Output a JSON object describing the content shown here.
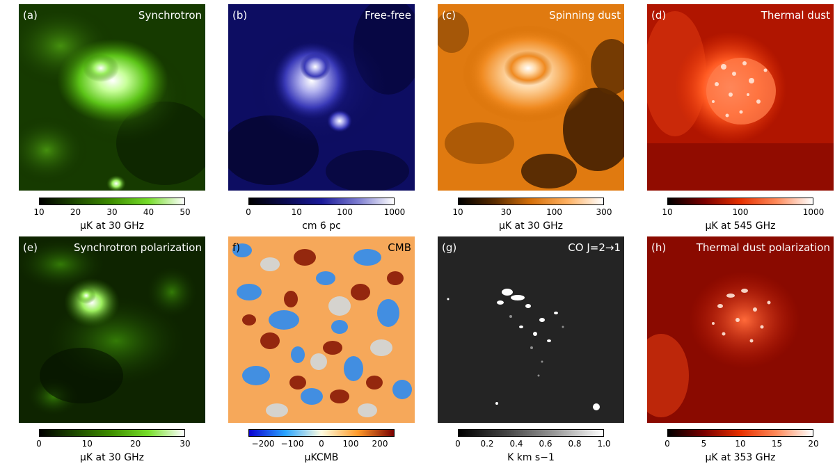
{
  "panels": [
    {
      "letter": "(a)",
      "title": "Synchrotron",
      "ticks": [
        "10",
        "20",
        "30",
        "40",
        "50"
      ],
      "unit": "μK at 30 GHz",
      "palette": [
        "#000000",
        "#1e4a00",
        "#3f8f00",
        "#76dd2a",
        "#ffffff"
      ]
    },
    {
      "letter": "(b)",
      "title": "Free-free",
      "ticks": [
        "0",
        "10",
        "100",
        "1000"
      ],
      "unit": "cm  6 pc",
      "palette": [
        "#000000",
        "#0a0a50",
        "#1a1a9a",
        "#7b7bd0",
        "#ffffff"
      ]
    },
    {
      "letter": "(c)",
      "title": "Spinning dust",
      "ticks": [
        "10",
        "30",
        "100",
        "300"
      ],
      "unit": "μK at 30 GHz",
      "palette": [
        "#000000",
        "#5a2c00",
        "#d6700a",
        "#ffb060",
        "#ffffff"
      ]
    },
    {
      "letter": "(d)",
      "title": "Thermal dust",
      "ticks": [
        "10",
        "100",
        "1000"
      ],
      "unit": "μK at 545 GHz",
      "palette": [
        "#000000",
        "#7a0000",
        "#e63000",
        "#ff8a5a",
        "#ffffff"
      ]
    },
    {
      "letter": "(e)",
      "title": "Synchrotron polarization",
      "ticks": [
        "0",
        "10",
        "20",
        "30"
      ],
      "unit": "μK at 30 GHz",
      "palette": [
        "#000000",
        "#1e4a00",
        "#3f8f00",
        "#76dd2a",
        "#ffffff"
      ]
    },
    {
      "letter": "f)",
      "title": "CMB",
      "ticks": [
        "−200",
        "−100",
        "0",
        "100",
        "200"
      ],
      "unit": "μKCMB",
      "palette": [
        "#0a00d0",
        "#29a3ff",
        "#fffde0",
        "#ff9a2a",
        "#7a0000"
      ]
    },
    {
      "letter": "(g)",
      "title": "CO J=2→1",
      "ticks": [
        "0",
        "0.2",
        "0.4",
        "0.6",
        "0.8",
        "1.0"
      ],
      "unit": "K km s−1",
      "palette": [
        "#000000",
        "#444444",
        "#999999",
        "#ffffff"
      ]
    },
    {
      "letter": "(h)",
      "title": "Thermal dust polarization",
      "ticks": [
        "0",
        "5",
        "10",
        "15",
        "20"
      ],
      "unit": "μK at 353 GHz",
      "palette": [
        "#000000",
        "#7a0000",
        "#e63000",
        "#ff8a5a",
        "#ffffff"
      ]
    }
  ]
}
